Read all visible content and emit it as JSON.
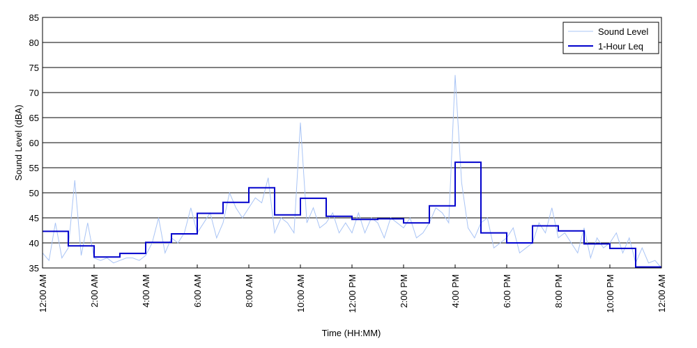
{
  "chart_data": {
    "type": "line",
    "title": "",
    "xlabel": "Time (HH:MM)",
    "ylabel": "Sound Level (dBA)",
    "ylim": [
      35,
      85
    ],
    "yticks": [
      35,
      40,
      45,
      50,
      55,
      60,
      65,
      70,
      75,
      80,
      85
    ],
    "xlim_hours": [
      0,
      24
    ],
    "xticks": [
      {
        "hour": 0,
        "label": "12:00 AM"
      },
      {
        "hour": 2,
        "label": "2:00 AM"
      },
      {
        "hour": 4,
        "label": "4:00 AM"
      },
      {
        "hour": 6,
        "label": "6:00 AM"
      },
      {
        "hour": 8,
        "label": "8:00 AM"
      },
      {
        "hour": 10,
        "label": "10:00 AM"
      },
      {
        "hour": 12,
        "label": "12:00 PM"
      },
      {
        "hour": 14,
        "label": "2:00 PM"
      },
      {
        "hour": 16,
        "label": "4:00 PM"
      },
      {
        "hour": 18,
        "label": "6:00 PM"
      },
      {
        "hour": 20,
        "label": "8:00 PM"
      },
      {
        "hour": 22,
        "label": "10:00 PM"
      },
      {
        "hour": 24,
        "label": "12:00 AM"
      }
    ],
    "grid": "horizontal",
    "legend_position": "top-right",
    "series": [
      {
        "name": "Sound Level",
        "color": "#a9c4f5",
        "style": "thin",
        "x": [
          0,
          0.25,
          0.5,
          0.75,
          1,
          1.25,
          1.5,
          1.75,
          2,
          2.25,
          2.5,
          2.75,
          3,
          3.25,
          3.5,
          3.75,
          4,
          4.25,
          4.5,
          4.75,
          5,
          5.25,
          5.5,
          5.75,
          6,
          6.25,
          6.5,
          6.75,
          7,
          7.25,
          7.5,
          7.75,
          8,
          8.25,
          8.5,
          8.75,
          9,
          9.25,
          9.5,
          9.75,
          10,
          10.25,
          10.5,
          10.75,
          11,
          11.25,
          11.5,
          11.75,
          12,
          12.25,
          12.5,
          12.75,
          13,
          13.25,
          13.5,
          13.75,
          14,
          14.25,
          14.5,
          14.75,
          15,
          15.25,
          15.5,
          15.75,
          16,
          16.25,
          16.5,
          16.75,
          17,
          17.25,
          17.5,
          17.75,
          18,
          18.25,
          18.5,
          18.75,
          19,
          19.25,
          19.5,
          19.75,
          20,
          20.25,
          20.5,
          20.75,
          21,
          21.25,
          21.5,
          21.75,
          22,
          22.25,
          22.5,
          22.75,
          23,
          23.25,
          23.5,
          23.75,
          24
        ],
        "y": [
          38,
          36.5,
          44,
          37,
          39,
          52.5,
          37.5,
          44,
          37,
          36.5,
          37,
          36,
          36.5,
          37,
          37,
          36.5,
          37.5,
          40,
          45,
          38,
          41,
          40,
          42,
          47,
          42,
          44,
          46,
          41,
          44,
          50,
          47,
          45,
          47,
          49,
          48,
          53,
          42,
          45,
          44,
          42,
          64,
          44,
          47,
          43,
          44,
          46,
          42,
          44,
          42,
          46,
          42,
          45,
          44,
          41,
          45,
          44,
          43,
          45,
          41,
          42,
          44,
          47,
          46,
          44,
          73.5,
          52,
          43,
          41,
          44,
          45,
          39,
          40,
          41,
          43,
          38,
          39,
          40,
          44,
          42,
          47,
          41,
          42,
          40,
          38,
          43,
          37,
          41,
          39,
          40,
          42,
          38,
          41,
          36,
          39,
          36,
          36.5,
          35
        ]
      },
      {
        "name": "1-Hour Leq",
        "color": "#0000cc",
        "style": "step",
        "hour_start": [
          0,
          1,
          2,
          3,
          4,
          5,
          6,
          7,
          8,
          9,
          10,
          11,
          12,
          13,
          14,
          15,
          16,
          17,
          18,
          19,
          20,
          21,
          22,
          23
        ],
        "values": [
          42.3,
          39.4,
          37.2,
          37.9,
          40.1,
          41.8,
          45.9,
          48.1,
          51.0,
          45.6,
          48.9,
          45.3,
          44.7,
          44.8,
          44.0,
          47.4,
          56.1,
          42.0,
          40.0,
          43.4,
          42.4,
          39.8,
          38.9,
          35.2
        ]
      }
    ]
  }
}
